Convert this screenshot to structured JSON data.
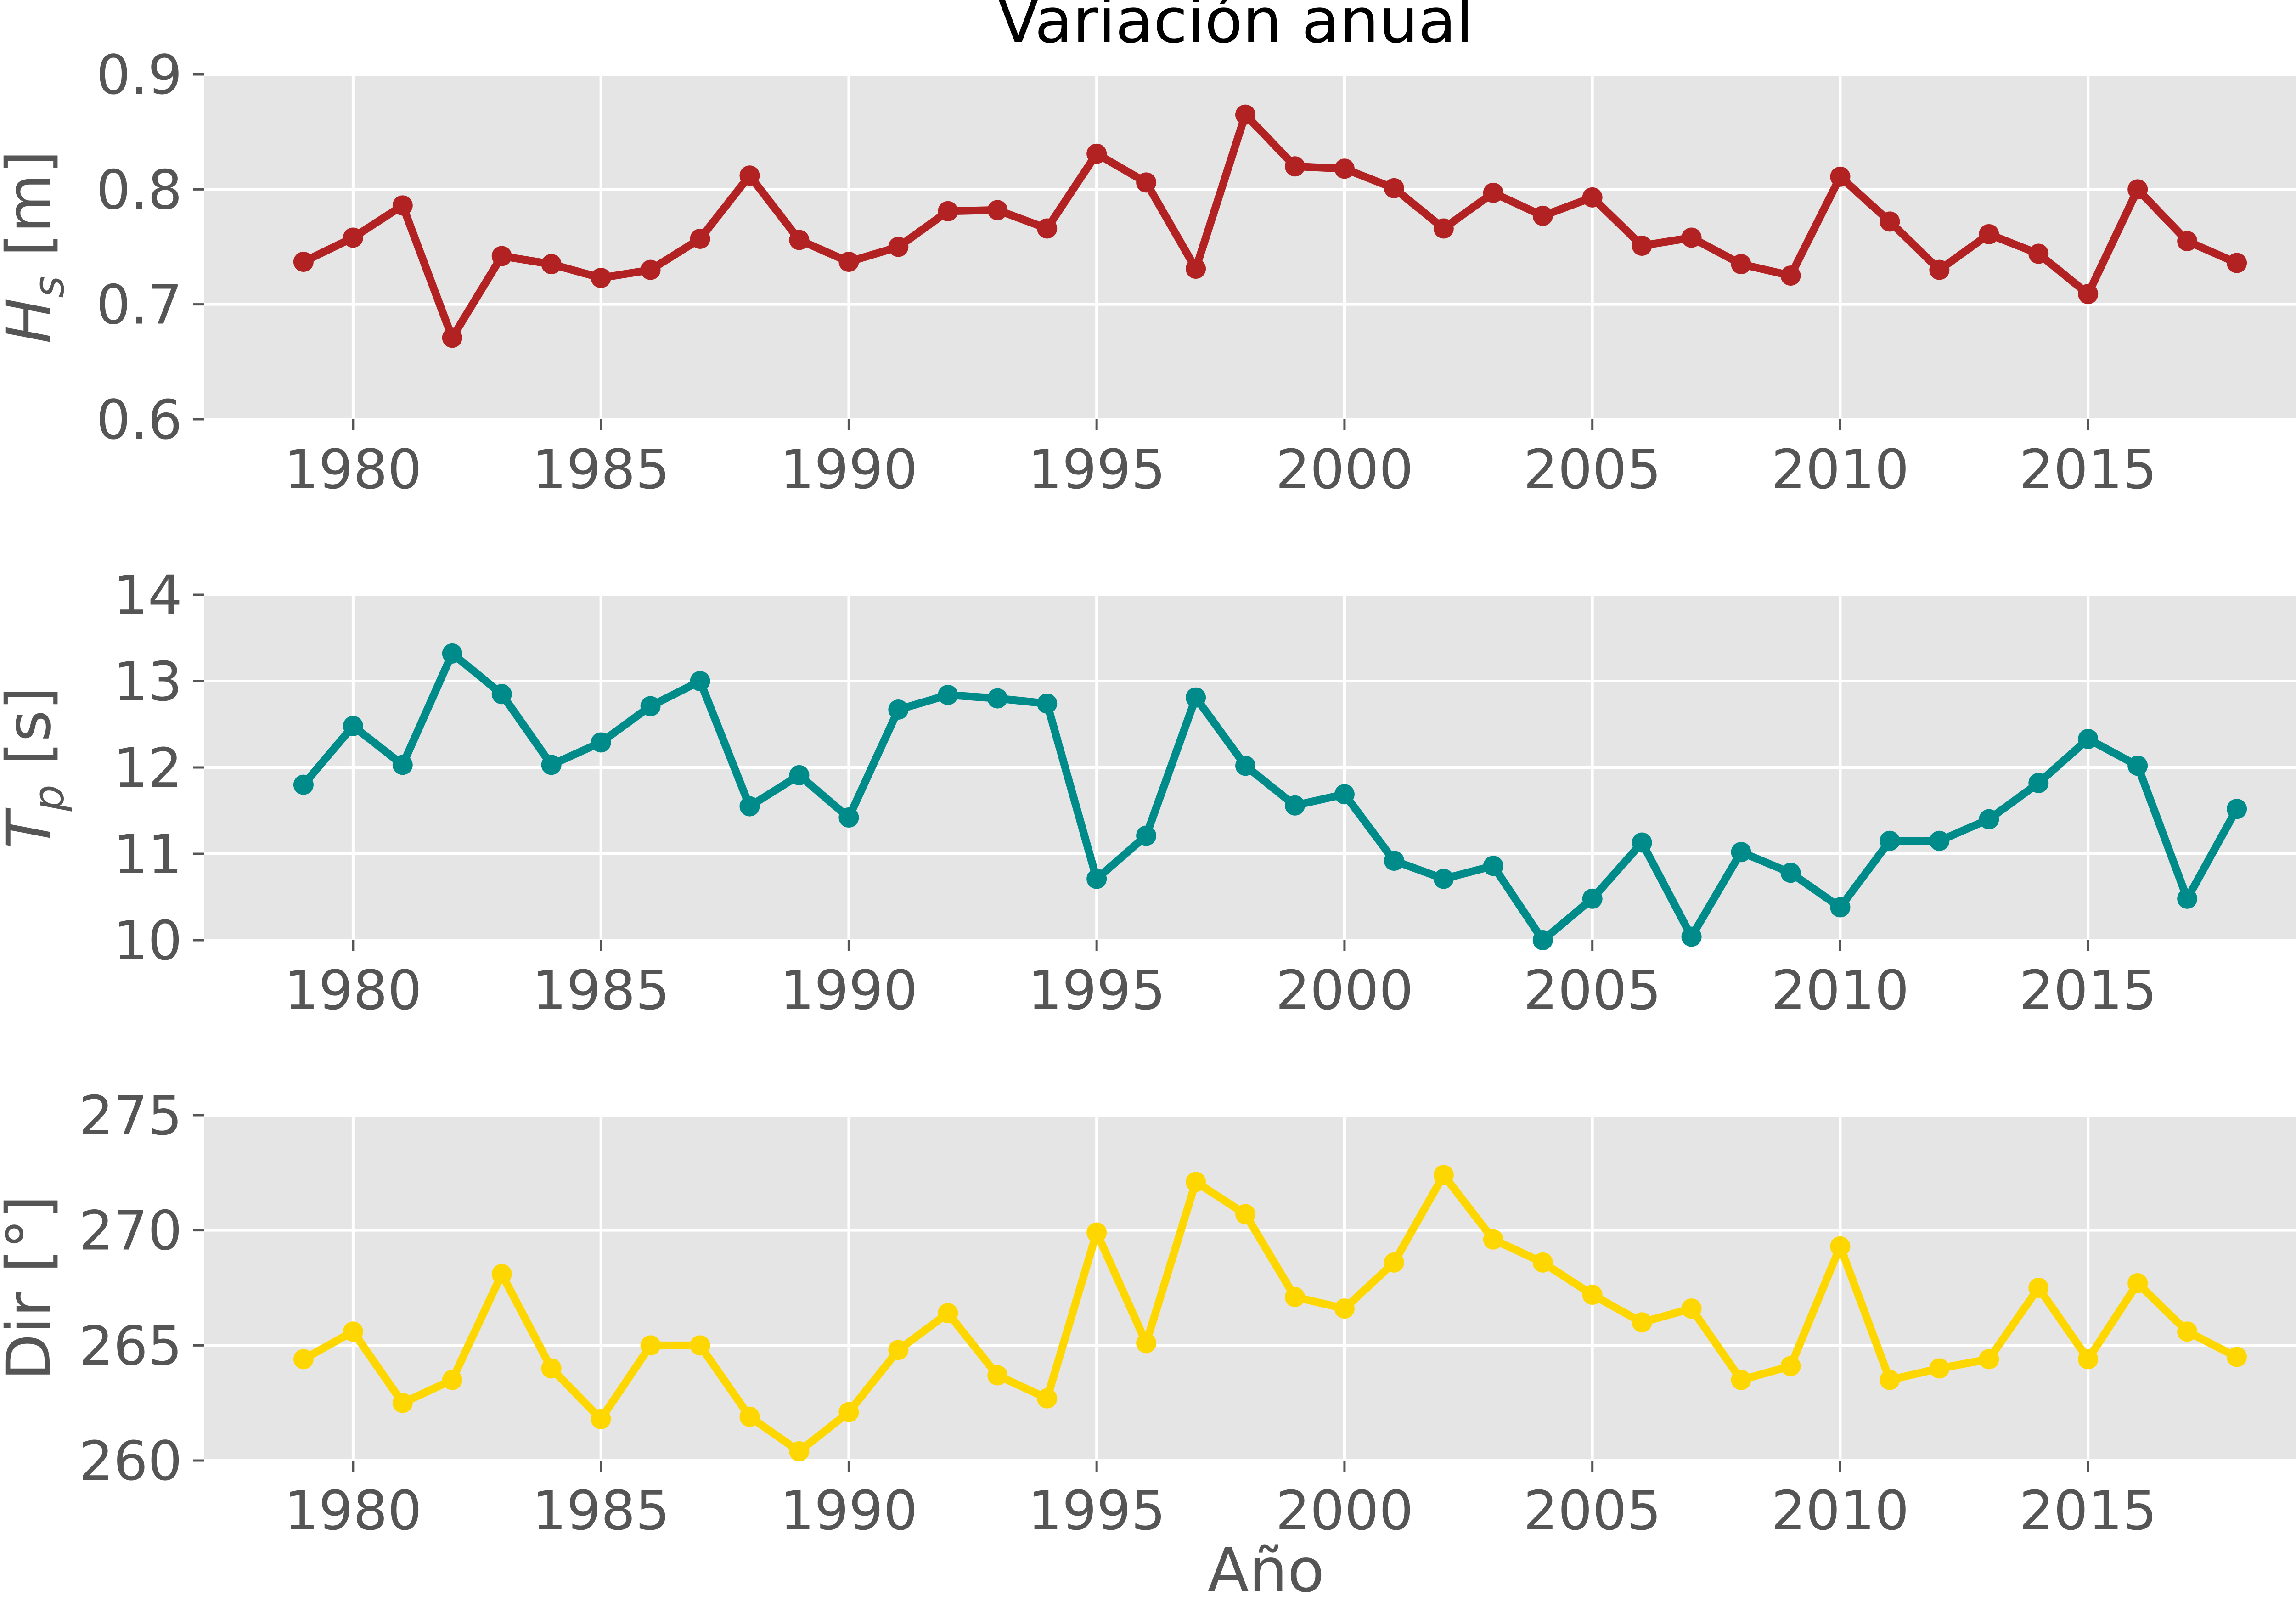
{
  "title": "Variación anual",
  "xlabel": "Año",
  "chart_data": [
    {
      "type": "line",
      "ylabel_main": "H",
      "ylabel_sub": "s",
      "ylabel_unit": "[m]",
      "ylim": [
        0.6,
        0.9
      ],
      "yticks": [
        "0.6",
        "0.7",
        "0.8",
        "0.9"
      ],
      "xlim": [
        1977.0,
        2020.0
      ],
      "xticks": [
        "1980",
        "1985",
        "1990",
        "1995",
        "2000",
        "2005",
        "2010",
        "2015"
      ],
      "grid": true,
      "color": "#b22222",
      "x": [
        1979,
        1980,
        1981,
        1982,
        1983,
        1984,
        1985,
        1986,
        1987,
        1988,
        1989,
        1990,
        1991,
        1992,
        1993,
        1994,
        1995,
        1996,
        1997,
        1998,
        1999,
        2000,
        2001,
        2002,
        2003,
        2004,
        2005,
        2006,
        2007,
        2008,
        2009,
        2010,
        2011,
        2012,
        2013,
        2014,
        2015,
        2016,
        2017,
        2018
      ],
      "values": [
        0.737,
        0.758,
        0.786,
        0.671,
        0.742,
        0.735,
        0.723,
        0.73,
        0.757,
        0.812,
        0.756,
        0.737,
        0.75,
        0.781,
        0.782,
        0.766,
        0.831,
        0.806,
        0.731,
        0.865,
        0.82,
        0.818,
        0.801,
        0.766,
        0.797,
        0.777,
        0.793,
        0.751,
        0.758,
        0.735,
        0.725,
        0.811,
        0.772,
        0.73,
        0.761,
        0.744,
        0.709,
        0.8,
        0.755,
        0.736
      ]
    },
    {
      "type": "line",
      "ylabel_main": "T",
      "ylabel_sub": "p",
      "ylabel_unit": "[s]",
      "ylim": [
        10,
        14
      ],
      "yticks": [
        "10",
        "11",
        "12",
        "13",
        "14"
      ],
      "xlim": [
        1977.0,
        2020.0
      ],
      "xticks": [
        "1980",
        "1985",
        "1990",
        "1995",
        "2000",
        "2005",
        "2010",
        "2015"
      ],
      "grid": true,
      "color": "#008b8b",
      "x": [
        1979,
        1980,
        1981,
        1982,
        1983,
        1984,
        1985,
        1986,
        1987,
        1988,
        1989,
        1990,
        1991,
        1992,
        1993,
        1994,
        1995,
        1996,
        1997,
        1998,
        1999,
        2000,
        2001,
        2002,
        2003,
        2004,
        2005,
        2006,
        2007,
        2008,
        2009,
        2010,
        2011,
        2012,
        2013,
        2014,
        2015,
        2016,
        2017,
        2018
      ],
      "values": [
        11.8,
        12.48,
        12.03,
        13.32,
        12.85,
        12.03,
        12.29,
        12.71,
        13.0,
        11.55,
        11.91,
        11.42,
        12.67,
        12.84,
        12.8,
        12.74,
        10.71,
        11.21,
        12.81,
        12.02,
        11.56,
        11.69,
        10.92,
        10.71,
        10.86,
        10.0,
        10.48,
        11.13,
        10.04,
        11.02,
        10.78,
        10.38,
        11.15,
        11.15,
        11.4,
        11.82,
        12.33,
        12.02,
        10.48,
        11.52
      ]
    },
    {
      "type": "line",
      "ylabel_main": "Dir [°]",
      "ylim": [
        260,
        275
      ],
      "yticks": [
        "260",
        "265",
        "270",
        "275"
      ],
      "xlim": [
        1977.0,
        2020.0
      ],
      "xticks": [
        "1980",
        "1985",
        "1990",
        "1995",
        "2000",
        "2005",
        "2010",
        "2015"
      ],
      "grid": true,
      "color": "#ffd700",
      "x": [
        1979,
        1980,
        1981,
        1982,
        1983,
        1984,
        1985,
        1986,
        1987,
        1988,
        1989,
        1990,
        1991,
        1992,
        1993,
        1994,
        1995,
        1996,
        1997,
        1998,
        1999,
        2000,
        2001,
        2002,
        2003,
        2004,
        2005,
        2006,
        2007,
        2008,
        2009,
        2010,
        2011,
        2012,
        2013,
        2014,
        2015,
        2016,
        2017,
        2018
      ],
      "values": [
        264.4,
        265.6,
        262.5,
        263.5,
        268.1,
        264.0,
        261.8,
        265.0,
        265.0,
        261.9,
        260.4,
        262.1,
        264.8,
        266.4,
        263.7,
        262.7,
        269.9,
        265.1,
        272.1,
        270.7,
        267.1,
        266.6,
        268.6,
        272.4,
        269.6,
        268.6,
        267.2,
        266.0,
        266.6,
        263.5,
        264.1,
        269.3,
        263.5,
        264.0,
        264.4,
        267.5,
        264.4,
        267.7,
        265.6,
        264.5
      ]
    }
  ]
}
